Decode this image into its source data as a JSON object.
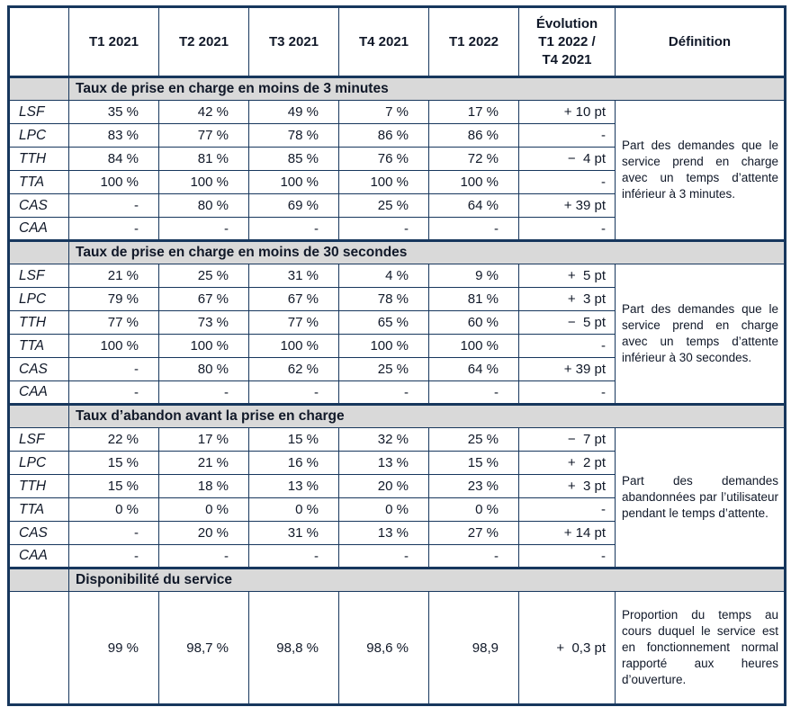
{
  "table": {
    "columns": [
      "",
      "T1 2021",
      "T2 2021",
      "T3 2021",
      "T4 2021",
      "T1 2022",
      "Évolution\nT1 2022 /\nT4 2021",
      "Définition"
    ],
    "colors": {
      "border": "#17375D",
      "section_background": "#D9D9D9",
      "text": "#101828"
    },
    "sections": [
      {
        "title": "Taux de prise en charge en moins de 3 minutes",
        "definition": "Part des demandes que le service prend en charge avec un temps d’attente inférieur à 3 minutes.",
        "rows": [
          {
            "label": "LSF",
            "values": [
              "35 %",
              "42 %",
              "49 %",
              "7 %",
              "17 %"
            ],
            "evolution": "+ 10 pt"
          },
          {
            "label": "LPC",
            "values": [
              "83 %",
              "77 %",
              "78 %",
              "86 %",
              "86 %"
            ],
            "evolution": "-"
          },
          {
            "label": "TTH",
            "values": [
              "84 %",
              "81 %",
              "85 %",
              "76 %",
              "72 %"
            ],
            "evolution": "−  4 pt"
          },
          {
            "label": "TTA",
            "values": [
              "100 %",
              "100 %",
              "100 %",
              "100 %",
              "100 %"
            ],
            "evolution": "-"
          },
          {
            "label": "CAS",
            "values": [
              "-",
              "80 %",
              "69 %",
              "25 %",
              "64 %"
            ],
            "evolution": "+ 39 pt"
          },
          {
            "label": "CAA",
            "values": [
              "-",
              "-",
              "-",
              "-",
              "-"
            ],
            "evolution": "-"
          }
        ]
      },
      {
        "title": "Taux de prise en charge en moins de 30 secondes",
        "definition": "Part des demandes que le service prend en charge avec un temps d’attente inférieur à 30 secondes.",
        "rows": [
          {
            "label": "LSF",
            "values": [
              "21 %",
              "25 %",
              "31 %",
              "4 %",
              "9 %"
            ],
            "evolution": "+  5 pt"
          },
          {
            "label": "LPC",
            "values": [
              "79 %",
              "67 %",
              "67 %",
              "78 %",
              "81 %"
            ],
            "evolution": "+  3 pt"
          },
          {
            "label": "TTH",
            "values": [
              "77 %",
              "73 %",
              "77 %",
              "65 %",
              "60 %"
            ],
            "evolution": "−  5 pt"
          },
          {
            "label": "TTA",
            "values": [
              "100 %",
              "100 %",
              "100 %",
              "100 %",
              "100 %"
            ],
            "evolution": "-"
          },
          {
            "label": "CAS",
            "values": [
              "-",
              "80 %",
              "62 %",
              "25 %",
              "64 %"
            ],
            "evolution": "+ 39 pt"
          },
          {
            "label": "CAA",
            "values": [
              "-",
              "-",
              "-",
              "-",
              "-"
            ],
            "evolution": "-"
          }
        ]
      },
      {
        "title": "Taux d’abandon avant la prise en charge",
        "definition": "Part des demandes abandonnées par l’utilisateur pendant le temps d’attente.",
        "rows": [
          {
            "label": "LSF",
            "values": [
              "22 %",
              "17 %",
              "15 %",
              "32 %",
              "25 %"
            ],
            "evolution": "−  7 pt"
          },
          {
            "label": "LPC",
            "values": [
              "15 %",
              "21 %",
              "16 %",
              "13 %",
              "15 %"
            ],
            "evolution": "+  2 pt"
          },
          {
            "label": "TTH",
            "values": [
              "15 %",
              "18 %",
              "13 %",
              "20 %",
              "23 %"
            ],
            "evolution": "+  3 pt"
          },
          {
            "label": "TTA",
            "values": [
              "0 %",
              "0 %",
              "0 %",
              "0 %",
              "0 %"
            ],
            "evolution": "-"
          },
          {
            "label": "CAS",
            "values": [
              "-",
              "20 %",
              "31 %",
              "13 %",
              "27 %"
            ],
            "evolution": "+ 14 pt"
          },
          {
            "label": "CAA",
            "values": [
              "-",
              "-",
              "-",
              "-",
              "-"
            ],
            "evolution": "-"
          }
        ]
      },
      {
        "title": "Disponibilité du service",
        "definition": "Proportion du temps au cours duquel le service est en fonctionnement normal rapporté aux heures d’ouverture.",
        "rows": [
          {
            "label": "",
            "values": [
              "99 %",
              "98,7 %",
              "98,8 %",
              "98,6 %",
              "98,9"
            ],
            "evolution": "+  0,3 pt",
            "tall": true
          }
        ]
      }
    ]
  }
}
